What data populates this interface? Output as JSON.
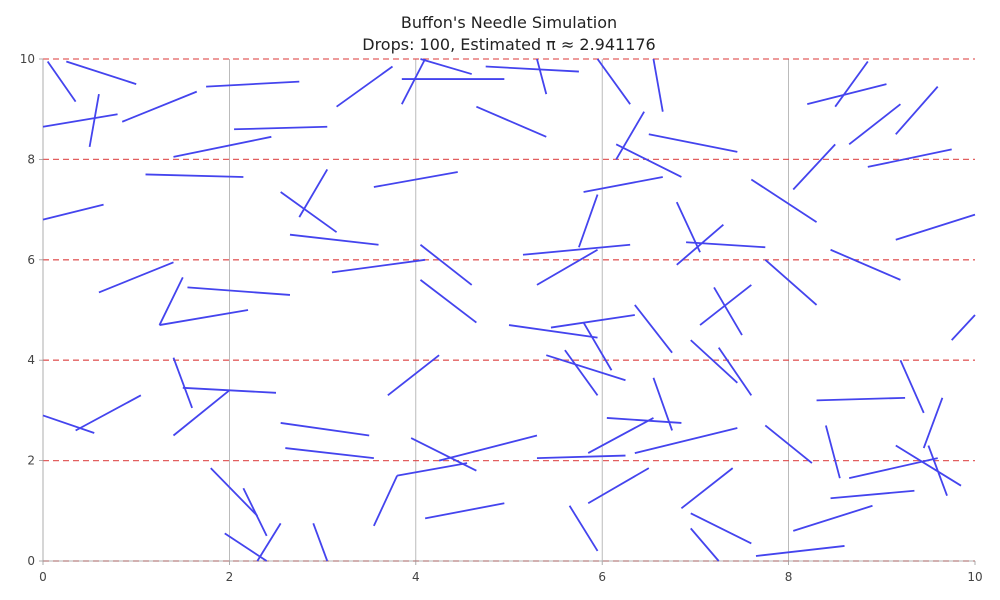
{
  "chart_data": {
    "type": "line",
    "title": "Buffon's Needle Simulation",
    "subtitle": "Drops: 100, Estimated π ≈ 2.941176",
    "xlabel": "",
    "ylabel": "",
    "xlim": [
      0,
      10
    ],
    "ylim": [
      0,
      10
    ],
    "x_ticks": [
      "0",
      "2",
      "4",
      "6",
      "8",
      "10"
    ],
    "y_ticks": [
      "0",
      "2",
      "4",
      "6",
      "8",
      "10"
    ],
    "grid": "x",
    "floor_lines_y": [
      0,
      2,
      4,
      6,
      8,
      10
    ],
    "colors": {
      "needle": "#4444ee",
      "floor_line": "#dd4444",
      "grid": "#aaaaaa",
      "axis": "#999999"
    },
    "needles": [
      [
        0.05,
        9.95,
        0.35,
        9.15
      ],
      [
        0.25,
        9.95,
        1.0,
        9.5
      ],
      [
        0.0,
        8.65,
        0.8,
        8.9
      ],
      [
        0.5,
        8.25,
        0.6,
        9.3
      ],
      [
        0.85,
        8.75,
        1.65,
        9.35
      ],
      [
        1.75,
        9.45,
        2.75,
        9.55
      ],
      [
        3.15,
        9.05,
        3.75,
        9.85
      ],
      [
        3.85,
        9.1,
        4.1,
        10.0
      ],
      [
        3.85,
        9.6,
        4.95,
        9.6
      ],
      [
        4.05,
        10.0,
        4.6,
        9.7
      ],
      [
        4.75,
        9.85,
        5.75,
        9.75
      ],
      [
        5.3,
        10.0,
        5.4,
        9.3
      ],
      [
        5.95,
        10.0,
        6.3,
        9.1
      ],
      [
        6.55,
        10.0,
        6.65,
        8.95
      ],
      [
        4.65,
        9.05,
        5.4,
        8.45
      ],
      [
        2.05,
        8.6,
        3.05,
        8.65
      ],
      [
        1.4,
        8.05,
        2.45,
        8.45
      ],
      [
        1.1,
        7.7,
        2.15,
        7.65
      ],
      [
        0.0,
        6.8,
        0.65,
        7.1
      ],
      [
        2.55,
        7.35,
        3.15,
        6.55
      ],
      [
        2.75,
        6.85,
        3.05,
        7.8
      ],
      [
        3.55,
        7.45,
        4.45,
        7.75
      ],
      [
        2.65,
        6.5,
        3.6,
        6.3
      ],
      [
        5.8,
        7.35,
        6.65,
        7.65
      ],
      [
        6.5,
        8.5,
        7.45,
        8.15
      ],
      [
        6.15,
        8.3,
        6.85,
        7.65
      ],
      [
        6.15,
        8.0,
        6.45,
        8.95
      ],
      [
        5.75,
        6.25,
        5.95,
        7.3
      ],
      [
        5.15,
        6.1,
        6.3,
        6.3
      ],
      [
        3.1,
        5.75,
        4.1,
        6.0
      ],
      [
        4.05,
        6.3,
        4.6,
        5.5
      ],
      [
        4.05,
        5.6,
        4.65,
        4.75
      ],
      [
        5.3,
        5.5,
        5.95,
        6.2
      ],
      [
        6.9,
        6.35,
        7.75,
        6.25
      ],
      [
        6.8,
        7.15,
        7.05,
        6.15
      ],
      [
        6.8,
        5.9,
        7.3,
        6.7
      ],
      [
        7.6,
        7.6,
        8.3,
        6.75
      ],
      [
        8.05,
        7.4,
        8.5,
        8.3
      ],
      [
        8.2,
        9.1,
        9.05,
        9.5
      ],
      [
        8.5,
        9.05,
        8.85,
        9.95
      ],
      [
        8.65,
        8.3,
        9.2,
        9.1
      ],
      [
        8.85,
        7.85,
        9.75,
        8.2
      ],
      [
        9.15,
        8.5,
        9.6,
        9.45
      ],
      [
        9.15,
        6.4,
        10.0,
        6.9
      ],
      [
        8.45,
        6.2,
        9.2,
        5.6
      ],
      [
        7.75,
        6.0,
        8.3,
        5.1
      ],
      [
        9.75,
        4.4,
        10.0,
        4.9
      ],
      [
        1.55,
        5.45,
        2.65,
        5.3
      ],
      [
        0.6,
        5.35,
        1.4,
        5.95
      ],
      [
        1.25,
        4.7,
        1.5,
        5.65
      ],
      [
        1.25,
        4.7,
        2.2,
        5.0
      ],
      [
        5.0,
        4.7,
        5.95,
        4.45
      ],
      [
        5.45,
        4.65,
        6.35,
        4.9
      ],
      [
        5.8,
        4.75,
        6.1,
        3.8
      ],
      [
        5.4,
        4.1,
        6.25,
        3.6
      ],
      [
        5.6,
        4.2,
        5.95,
        3.3
      ],
      [
        6.35,
        5.1,
        6.75,
        4.15
      ],
      [
        6.95,
        4.4,
        7.45,
        3.55
      ],
      [
        7.05,
        4.7,
        7.6,
        5.5
      ],
      [
        7.2,
        5.45,
        7.5,
        4.5
      ],
      [
        7.25,
        4.25,
        7.6,
        3.3
      ],
      [
        3.7,
        3.3,
        4.25,
        4.1
      ],
      [
        1.4,
        4.05,
        1.6,
        3.05
      ],
      [
        1.5,
        3.45,
        2.5,
        3.35
      ],
      [
        1.4,
        2.5,
        2.0,
        3.4
      ],
      [
        0.35,
        2.6,
        1.05,
        3.3
      ],
      [
        0.0,
        2.9,
        0.55,
        2.55
      ],
      [
        2.55,
        2.75,
        3.5,
        2.5
      ],
      [
        2.6,
        2.25,
        3.55,
        2.05
      ],
      [
        3.95,
        2.45,
        4.65,
        1.8
      ],
      [
        4.25,
        2.0,
        5.3,
        2.5
      ],
      [
        3.55,
        0.7,
        3.8,
        1.7
      ],
      [
        3.8,
        1.7,
        4.55,
        1.95
      ],
      [
        5.3,
        2.05,
        6.25,
        2.1
      ],
      [
        5.85,
        2.15,
        6.55,
        2.85
      ],
      [
        6.05,
        2.85,
        6.85,
        2.75
      ],
      [
        6.55,
        3.65,
        6.75,
        2.6
      ],
      [
        6.35,
        2.15,
        7.45,
        2.65
      ],
      [
        7.75,
        2.7,
        8.25,
        1.95
      ],
      [
        8.3,
        3.2,
        9.25,
        3.25
      ],
      [
        8.4,
        2.7,
        8.55,
        1.65
      ],
      [
        8.65,
        1.65,
        9.6,
        2.05
      ],
      [
        9.15,
        2.3,
        9.85,
        1.5
      ],
      [
        9.45,
        2.25,
        9.65,
        3.25
      ],
      [
        9.5,
        2.3,
        9.7,
        1.3
      ],
      [
        9.2,
        4.0,
        9.45,
        2.95
      ],
      [
        8.45,
        1.25,
        9.35,
        1.4
      ],
      [
        8.05,
        0.6,
        8.9,
        1.1
      ],
      [
        7.65,
        0.1,
        8.6,
        0.3
      ],
      [
        6.95,
        0.95,
        7.6,
        0.35
      ],
      [
        6.95,
        0.65,
        7.25,
        0.0
      ],
      [
        6.85,
        1.05,
        7.4,
        1.85
      ],
      [
        5.85,
        1.15,
        6.5,
        1.85
      ],
      [
        5.65,
        1.1,
        5.95,
        0.2
      ],
      [
        4.1,
        0.85,
        4.95,
        1.15
      ],
      [
        1.8,
        1.85,
        2.3,
        0.9
      ],
      [
        2.15,
        1.45,
        2.4,
        0.5
      ],
      [
        1.95,
        0.55,
        2.4,
        0.0
      ],
      [
        2.3,
        0.0,
        2.55,
        0.75
      ],
      [
        2.9,
        0.75,
        3.05,
        0.0
      ]
    ]
  }
}
